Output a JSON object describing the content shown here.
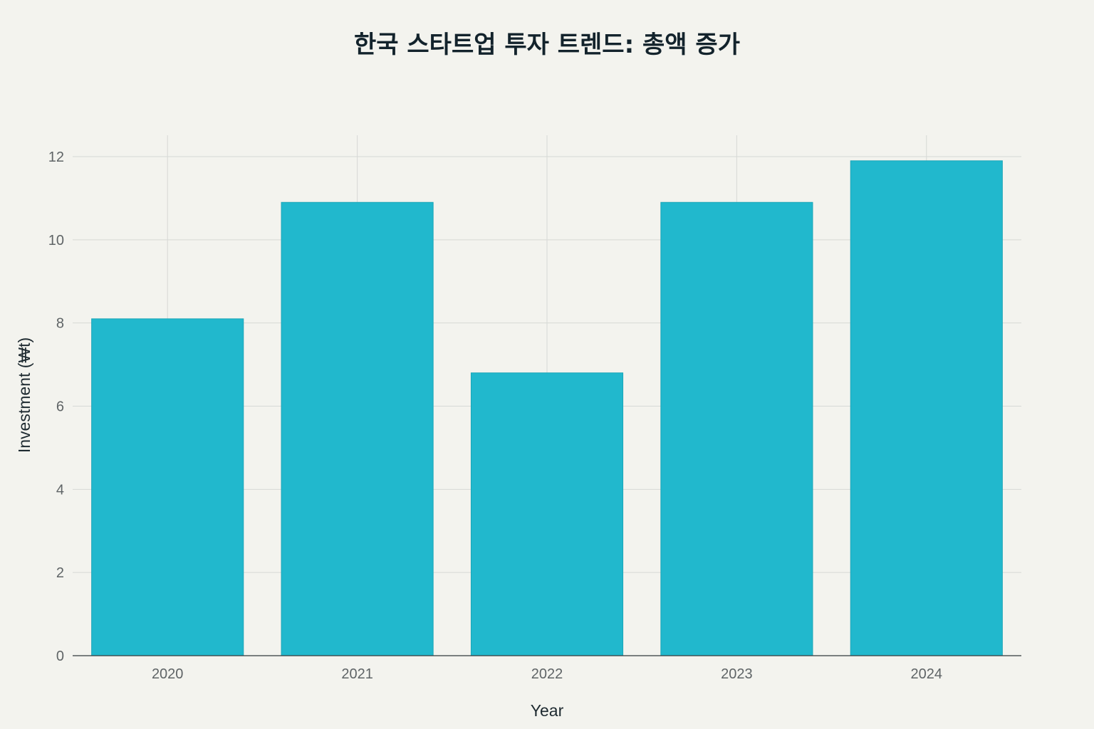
{
  "chart_data": {
    "type": "bar",
    "title": "한국 스타트업 투자 트렌드: 총액 증가",
    "xlabel": "Year",
    "ylabel": "Investment (₩t)",
    "categories": [
      "2020",
      "2021",
      "2022",
      "2023",
      "2024"
    ],
    "values": [
      8.1,
      10.9,
      6.8,
      10.9,
      11.9
    ],
    "ylim": [
      0,
      12.5
    ],
    "yticks": [
      0,
      2,
      4,
      6,
      8,
      10,
      12
    ],
    "grid": true,
    "legend": "none",
    "colors": {
      "bar": "#21b8cd",
      "background": "#f3f3ee"
    }
  }
}
